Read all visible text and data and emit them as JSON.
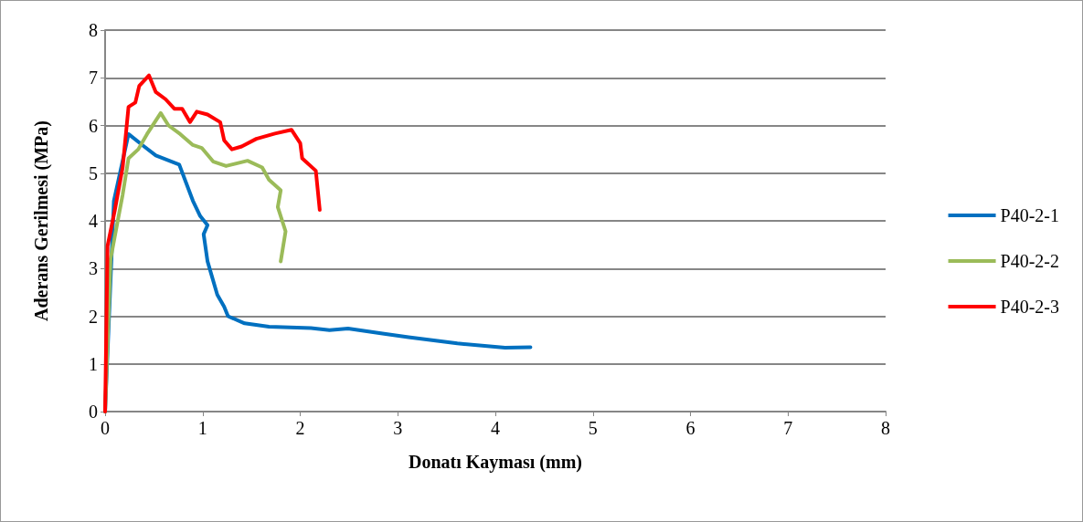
{
  "chart_data": {
    "type": "line",
    "xlabel": "Donatı Kayması (mm)",
    "ylabel": "Aderans Gerilmesi (MPa)",
    "xlim": [
      0,
      8
    ],
    "xticks": [
      0,
      1,
      2,
      3,
      4,
      5,
      6,
      7,
      8
    ],
    "ylim": [
      0,
      8
    ],
    "yticks": [
      0,
      1,
      2,
      3,
      4,
      5,
      6,
      7,
      8
    ],
    "grid": "y",
    "legend": "right",
    "marker": "none",
    "line_style": "solid",
    "series": [
      {
        "name": "P40-2-1",
        "color": "#0070c0",
        "x": [
          0,
          0.09,
          0.24,
          0.4,
          0.52,
          0.76,
          0.83,
          0.9,
          0.975,
          1.05,
          1.01,
          1.05,
          1.15,
          1.22,
          1.26,
          1.43,
          1.68,
          2.11,
          2.3,
          2.49,
          2.86,
          3.11,
          3.61,
          4.1,
          4.36
        ],
        "values": [
          0,
          4.42,
          5.82,
          5.56,
          5.37,
          5.18,
          4.8,
          4.42,
          4.1,
          3.91,
          3.72,
          3.15,
          2.45,
          2.2,
          2.0,
          1.85,
          1.78,
          1.75,
          1.71,
          1.74,
          1.63,
          1.56,
          1.43,
          1.34,
          1.35
        ]
      },
      {
        "name": "P40-2-2",
        "color": "#9bbb59",
        "x": [
          0,
          0.056,
          0.18,
          0.24,
          0.34,
          0.43,
          0.57,
          0.65,
          0.77,
          0.9,
          0.99,
          1.11,
          1.24,
          1.46,
          1.61,
          1.68,
          1.8,
          1.77,
          1.85,
          1.8
        ],
        "values": [
          0,
          3.2,
          4.55,
          5.31,
          5.5,
          5.82,
          6.26,
          6.0,
          5.82,
          5.59,
          5.53,
          5.24,
          5.15,
          5.26,
          5.12,
          4.86,
          4.64,
          4.29,
          3.78,
          3.15
        ]
      },
      {
        "name": "P40-2-3",
        "color": "#ff0000",
        "x": [
          0,
          0.025,
          0.1,
          0.18,
          0.24,
          0.31,
          0.35,
          0.45,
          0.52,
          0.62,
          0.71,
          0.79,
          0.87,
          0.94,
          1.05,
          1.18,
          1.22,
          1.3,
          1.4,
          1.55,
          1.74,
          1.91,
          2.0,
          2.02,
          2.16,
          2.2
        ],
        "values": [
          0,
          3.47,
          4.23,
          5.12,
          6.39,
          6.48,
          6.83,
          7.05,
          6.7,
          6.55,
          6.35,
          6.35,
          6.07,
          6.29,
          6.23,
          6.07,
          5.69,
          5.5,
          5.56,
          5.72,
          5.83,
          5.91,
          5.63,
          5.31,
          5.05,
          4.23
        ]
      }
    ]
  }
}
